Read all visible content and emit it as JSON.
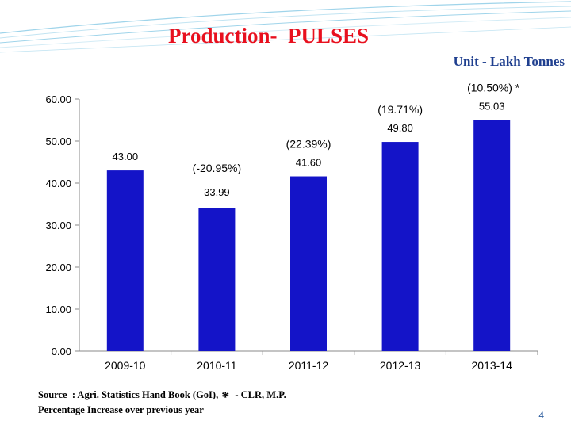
{
  "slide": {
    "title": "Production-  PULSES",
    "unit": "Unit - Lakh Tonnes",
    "source_text": "Source  : Agri. Statistics Hand Book (GoI),",
    "star": "*",
    "source_suffix": " - CLR, M.P.",
    "footnote": "Percentage Increase over previous year",
    "page_number": "4"
  },
  "chart_data": {
    "type": "bar",
    "categories": [
      "2009-10",
      "2010-11",
      "2011-12",
      "2012-13",
      "2013-14"
    ],
    "values": [
      43.0,
      33.99,
      41.6,
      49.8,
      55.03
    ],
    "value_labels": [
      "43.00",
      "33.99",
      "41.60",
      "49.80",
      "55.03"
    ],
    "change_labels": [
      "",
      "(-20.95%)",
      "(22.39%)",
      "(19.71%)",
      "(10.50%) *"
    ],
    "y_ticks": [
      "0.00",
      "10.00",
      "20.00",
      "30.00",
      "40.00",
      "50.00",
      "60.00"
    ],
    "ylim": [
      0,
      60
    ],
    "bar_color": "#1414c8",
    "grid": false,
    "legend": "none"
  }
}
